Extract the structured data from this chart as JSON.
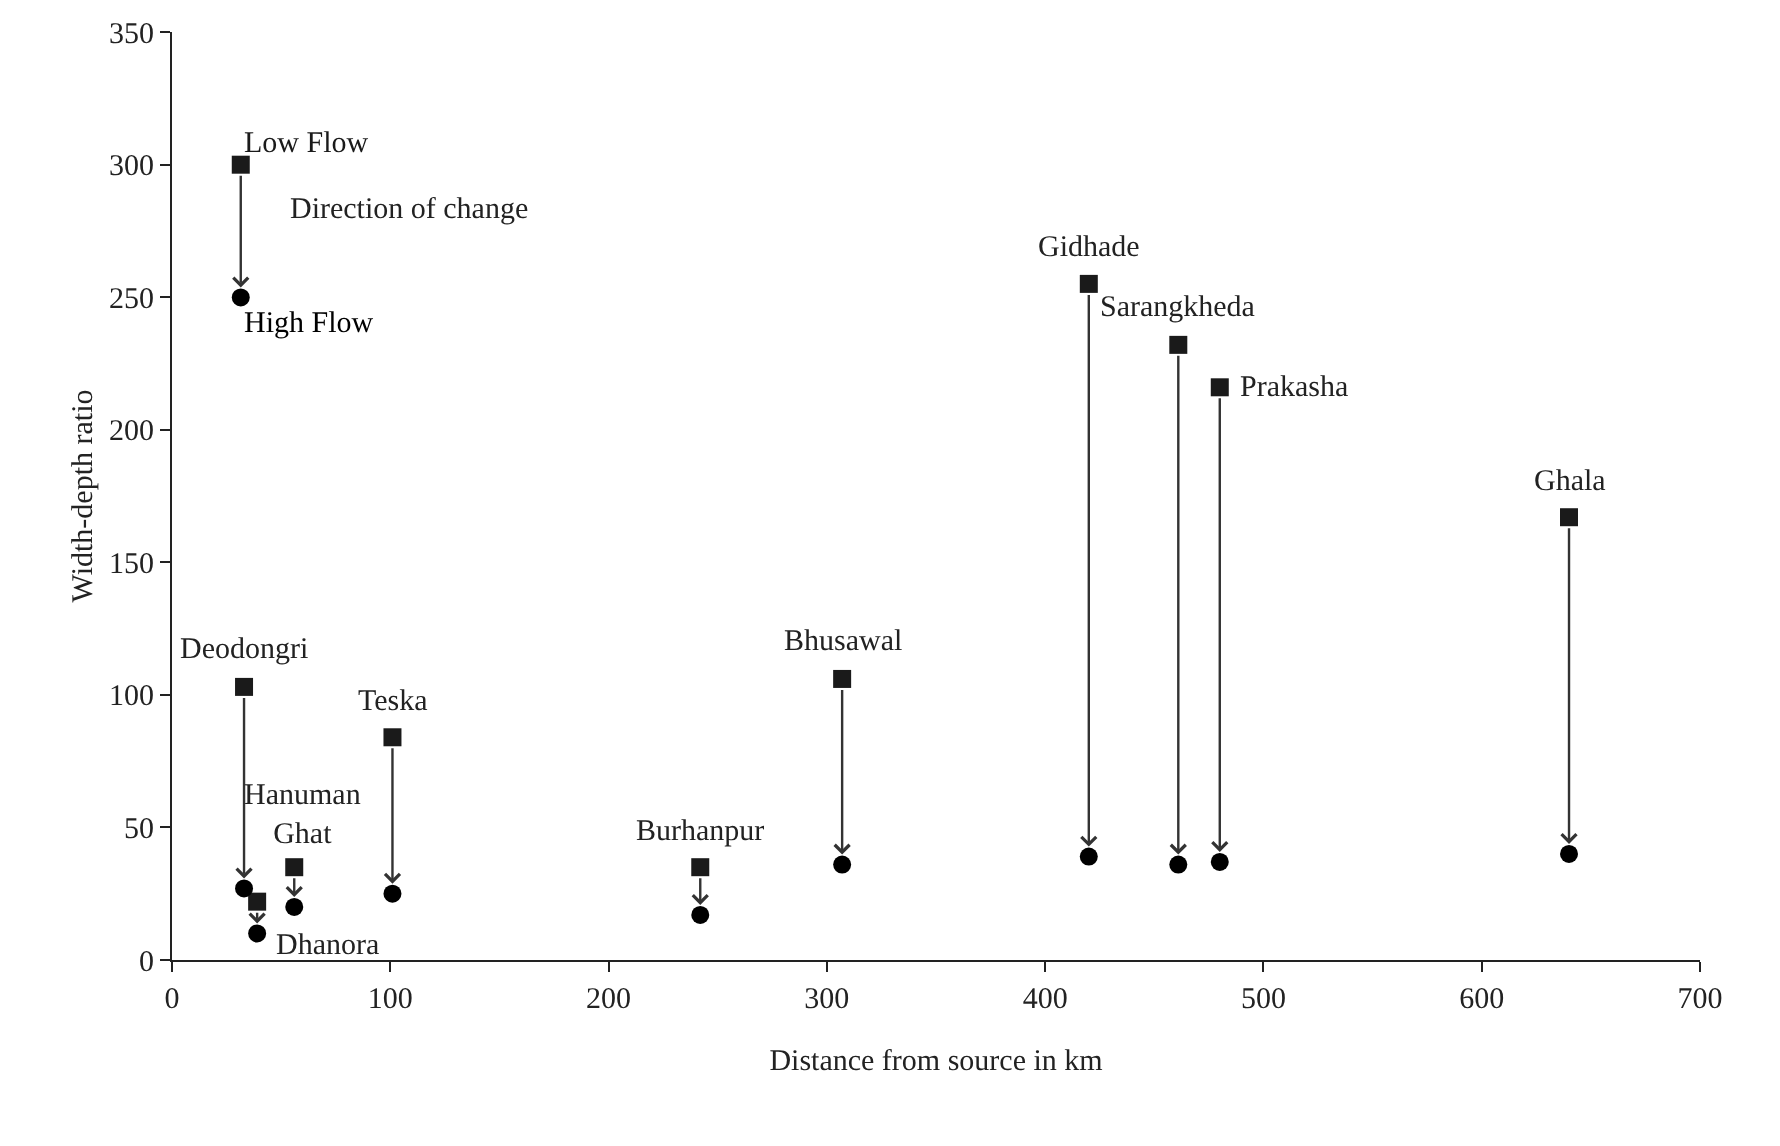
{
  "chart_data": {
    "type": "scatter",
    "xlabel": "Distance from source in km",
    "ylabel": "Width-depth ratio",
    "x": [
      33,
      39,
      56,
      101,
      242,
      307,
      420,
      461,
      480,
      640
    ],
    "series": [
      {
        "name": "Low Flow",
        "color": "#1a1a1a",
        "marker": "square",
        "values": [
          103,
          22,
          35,
          84,
          35,
          106,
          255,
          232,
          216,
          167
        ]
      },
      {
        "name": "High Flow",
        "color": "#000000",
        "marker": "circle",
        "values": [
          27,
          10,
          20,
          25,
          17,
          36,
          39,
          36,
          37,
          40
        ]
      }
    ],
    "annotations": [
      {
        "text": "Deodongri",
        "x": 33,
        "y": 103
      },
      {
        "text": "Dhanora",
        "x": 39,
        "y": 10
      },
      {
        "text": "Hanuman\nGhat",
        "x": 56,
        "y": 35
      },
      {
        "text": "Teska",
        "x": 101,
        "y": 84
      },
      {
        "text": "Burhanpur",
        "x": 242,
        "y": 35
      },
      {
        "text": "Bhusawal",
        "x": 307,
        "y": 106
      },
      {
        "text": "Gidhade",
        "x": 420,
        "y": 255
      },
      {
        "text": "Sarangkheda",
        "x": 461,
        "y": 232
      },
      {
        "text": "Prakasha",
        "x": 480,
        "y": 216
      },
      {
        "text": "Ghala",
        "x": 640,
        "y": 167
      },
      "Direction of change"
    ],
    "xlim": [
      0,
      700
    ],
    "xticks": [
      0,
      100,
      200,
      300,
      400,
      500,
      600,
      700
    ],
    "ylim": [
      0,
      350
    ],
    "yticks": [
      0,
      50,
      100,
      150,
      200,
      250,
      300,
      350
    ],
    "grid": false,
    "legend": "top left"
  }
}
